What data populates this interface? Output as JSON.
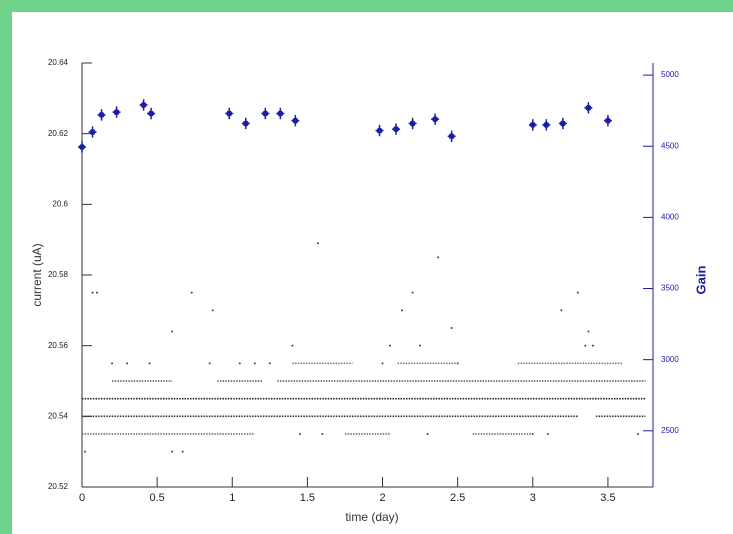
{
  "chart_data": {
    "type": "scatter",
    "xlabel": "time (day)",
    "ylabel": "current (uA)",
    "y2label": "Gain",
    "xlim": [
      0,
      3.8
    ],
    "xticks": [
      0,
      0.5,
      1,
      1.5,
      2,
      2.5,
      3,
      3.5
    ],
    "ylim": [
      20.52,
      20.64
    ],
    "yticks": [
      20.52,
      20.54,
      20.56,
      20.58,
      20.6,
      20.62,
      20.64
    ],
    "y2lim": [
      2105,
      5085
    ],
    "y2ticks": [
      2500,
      3000,
      3500,
      4000,
      4500,
      5000
    ],
    "series": [
      {
        "axis": "y2",
        "color": "#1c1ca8",
        "x": [
          0.0,
          0.07,
          0.13,
          0.23,
          0.41,
          0.46,
          0.98,
          1.09,
          1.22,
          1.32,
          1.42,
          1.98,
          2.09,
          2.2,
          2.35,
          2.46,
          3.0,
          3.09,
          3.2,
          3.37,
          3.5
        ],
        "values": [
          4495,
          4600,
          4720,
          4740,
          4790,
          4730,
          4730,
          4660,
          4730,
          4730,
          4680,
          4610,
          4620,
          4660,
          4690,
          4570,
          4650,
          4650,
          4660,
          4770,
          4680
        ],
        "errors": [
          40,
          40,
          40,
          40,
          40,
          40,
          40,
          40,
          40,
          40,
          40,
          40,
          40,
          40,
          40,
          40,
          40,
          40,
          40,
          40,
          40
        ]
      },
      {
        "color": "#444444",
        "x": [
          0.1,
          0.6,
          0.73,
          0.87,
          1.57,
          1.4,
          2.37,
          2.2,
          2.13,
          2.46,
          2.25,
          2.05,
          3.19,
          3.3,
          3.37,
          3.4,
          0.45,
          0.2,
          0.85,
          1.05,
          1.15,
          1.25,
          0.3,
          3.7,
          0.6,
          0.67,
          0.02,
          1.45,
          1.6,
          2.3,
          3.1,
          3.0,
          2.5,
          2.0,
          0.07,
          3.35
        ],
        "values": [
          20.575,
          20.564,
          20.575,
          20.57,
          20.589,
          20.56,
          20.585,
          20.575,
          20.57,
          20.565,
          20.56,
          20.56,
          20.57,
          20.575,
          20.564,
          20.56,
          20.555,
          20.555,
          20.555,
          20.555,
          20.555,
          20.555,
          20.555,
          20.535,
          20.53,
          20.53,
          20.53,
          20.535,
          20.535,
          20.535,
          20.535,
          20.535,
          20.555,
          20.555,
          20.575,
          20.56
        ]
      },
      {
        "style": "band",
        "color": "#333333",
        "x": [
          0,
          3.3,
          3.36,
          3.42,
          3.75
        ],
        "values": [
          20.54,
          20.54,
          null,
          20.54,
          20.54
        ]
      },
      {
        "style": "band",
        "color": "#222222",
        "x": [
          0,
          3.75
        ],
        "values": [
          20.545,
          20.545
        ]
      },
      {
        "style": "band",
        "color": "#555555",
        "x": [
          0.2,
          0.6,
          0.75,
          0.9,
          1.2,
          1.25,
          1.3,
          3.75
        ],
        "values": [
          20.55,
          20.55,
          null,
          20.55,
          20.55,
          null,
          20.55,
          20.55
        ]
      },
      {
        "style": "band",
        "color": "#666666",
        "x": [
          0,
          1.15,
          1.45,
          1.75,
          2.05,
          2.3,
          2.6,
          3.0
        ],
        "values": [
          20.535,
          20.535,
          null,
          20.535,
          20.535,
          null,
          20.535,
          20.535
        ]
      },
      {
        "style": "band",
        "color": "#777777",
        "x": [
          1.4,
          1.8,
          1.95,
          2.1,
          2.5,
          2.7,
          2.9,
          3.6
        ],
        "values": [
          20.555,
          20.555,
          null,
          20.555,
          20.555,
          null,
          20.555,
          20.555
        ]
      }
    ]
  }
}
